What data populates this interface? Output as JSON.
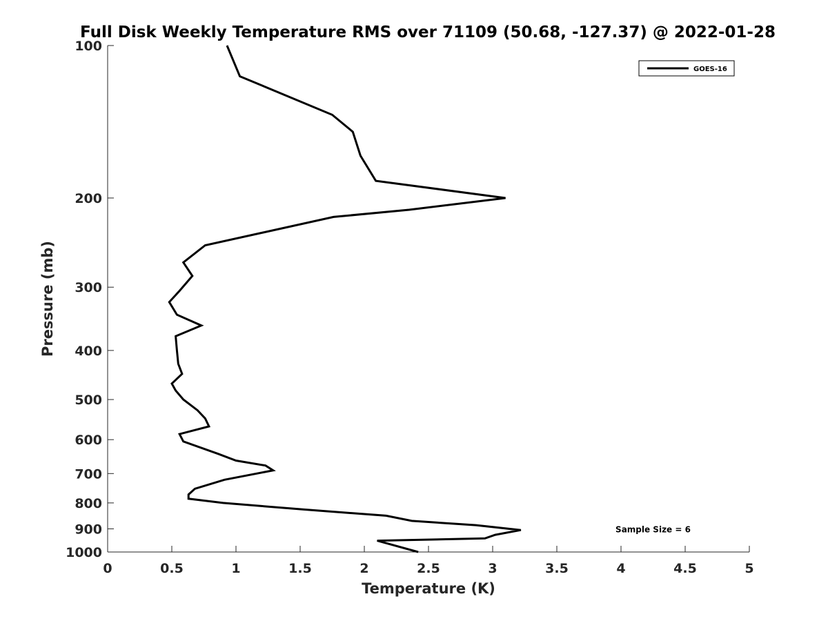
{
  "chart_data": {
    "type": "line",
    "title": "Full Disk Weekly Temperature RMS over 71109 (50.68, -127.37) @ 2022-01-28",
    "xlabel": "Temperature (K)",
    "ylabel": "Pressure (mb)",
    "xlim": [
      0,
      5
    ],
    "ylim": [
      100,
      1000
    ],
    "y_scale": "log",
    "y_reversed": true,
    "x_ticks": [
      "0",
      "0.5",
      "1",
      "1.5",
      "2",
      "2.5",
      "3",
      "3.5",
      "4",
      "4.5",
      "5"
    ],
    "x_tick_values": [
      0,
      0.5,
      1,
      1.5,
      2,
      2.5,
      3,
      3.5,
      4,
      4.5,
      5
    ],
    "y_ticks": [
      "100",
      "200",
      "300",
      "400",
      "500",
      "600",
      "700",
      "800",
      "900",
      "1000"
    ],
    "y_tick_values": [
      100,
      200,
      300,
      400,
      500,
      600,
      700,
      800,
      900,
      1000
    ],
    "grid": false,
    "legend_position": "top-right",
    "series": [
      {
        "name": "GOES-16",
        "color": "#000000",
        "points": [
          [
            0.93,
            100
          ],
          [
            1.03,
            115
          ],
          [
            1.75,
            137
          ],
          [
            1.91,
            148
          ],
          [
            1.97,
            165
          ],
          [
            2.09,
            185
          ],
          [
            3.1,
            200
          ],
          [
            2.35,
            211
          ],
          [
            1.76,
            218
          ],
          [
            0.76,
            248
          ],
          [
            0.59,
            268
          ],
          [
            0.66,
            285
          ],
          [
            0.56,
            305
          ],
          [
            0.48,
            321
          ],
          [
            0.54,
            340
          ],
          [
            0.73,
            357
          ],
          [
            0.53,
            375
          ],
          [
            0.54,
            400
          ],
          [
            0.55,
            425
          ],
          [
            0.58,
            445
          ],
          [
            0.5,
            465
          ],
          [
            0.53,
            480
          ],
          [
            0.59,
            500
          ],
          [
            0.7,
            525
          ],
          [
            0.76,
            545
          ],
          [
            0.79,
            565
          ],
          [
            0.56,
            585
          ],
          [
            0.59,
            605
          ],
          [
            0.86,
            640
          ],
          [
            1.0,
            660
          ],
          [
            1.23,
            675
          ],
          [
            1.29,
            690
          ],
          [
            0.91,
            720
          ],
          [
            0.68,
            750
          ],
          [
            0.63,
            770
          ],
          [
            0.63,
            785
          ],
          [
            0.9,
            800
          ],
          [
            1.52,
            824
          ],
          [
            2.17,
            848
          ],
          [
            2.37,
            868
          ],
          [
            2.87,
            885
          ],
          [
            3.22,
            905
          ],
          [
            3.02,
            925
          ],
          [
            2.94,
            940
          ],
          [
            2.1,
            950
          ],
          [
            2.42,
            1000
          ]
        ]
      }
    ],
    "annotations": [
      {
        "text": "Sample Size = 6",
        "x": 4.25,
        "y": 900
      }
    ]
  }
}
